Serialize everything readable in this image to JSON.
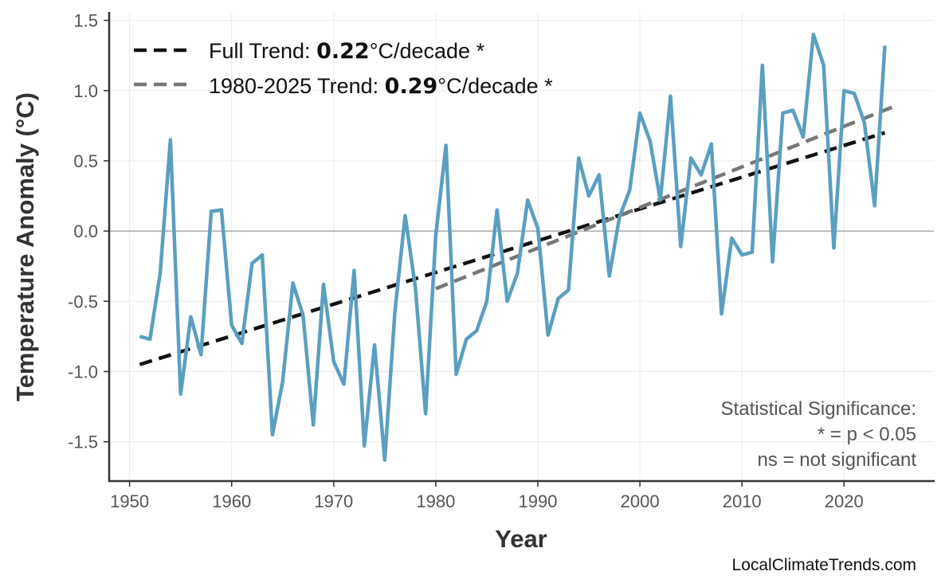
{
  "chart_data": {
    "type": "line",
    "title": "",
    "xlabel": "Year",
    "ylabel": "Temperature Anomaly (°C)",
    "xlim": [
      1948,
      2028.8
    ],
    "ylim": [
      -1.78,
      1.56
    ],
    "xticks": [
      1950,
      1960,
      1970,
      1980,
      1990,
      2000,
      2010,
      2020
    ],
    "yticks": [
      -1.5,
      -1.0,
      -0.5,
      0.0,
      0.5,
      1.0,
      1.5
    ],
    "ytick_labels": [
      "-1.5",
      "-1.0",
      "-0.5",
      "0.0",
      "0.5",
      "1.0",
      "1.5"
    ],
    "grid": true,
    "zero_line": true,
    "legend_position": "top-left",
    "colors": {
      "series": "#5a9fc0",
      "full_trend": "#111111",
      "recent_trend": "#777777",
      "zero_line": "#aaaaaa",
      "grid": "#ebebeb"
    },
    "x": [
      1951,
      1952,
      1953,
      1954,
      1955,
      1956,
      1957,
      1958,
      1959,
      1960,
      1961,
      1962,
      1963,
      1964,
      1965,
      1966,
      1967,
      1968,
      1969,
      1970,
      1971,
      1972,
      1973,
      1974,
      1975,
      1976,
      1977,
      1978,
      1979,
      1980,
      1981,
      1982,
      1983,
      1984,
      1985,
      1986,
      1987,
      1988,
      1989,
      1990,
      1991,
      1992,
      1993,
      1994,
      1995,
      1996,
      1997,
      1998,
      1999,
      2000,
      2001,
      2002,
      2003,
      2004,
      2005,
      2006,
      2007,
      2008,
      2009,
      2010,
      2011,
      2012,
      2013,
      2014,
      2015,
      2016,
      2017,
      2018,
      2019,
      2020,
      2021,
      2022,
      2023,
      2024
    ],
    "values": [
      -0.75,
      -0.77,
      -0.3,
      0.65,
      -1.16,
      -0.61,
      -0.88,
      0.14,
      0.15,
      -0.67,
      -0.8,
      -0.23,
      -0.17,
      -1.45,
      -1.07,
      -0.37,
      -0.6,
      -1.38,
      -0.38,
      -0.93,
      -1.09,
      -0.28,
      -1.53,
      -0.81,
      -1.63,
      -0.57,
      0.11,
      -0.4,
      -1.3,
      -0.03,
      0.61,
      -1.02,
      -0.77,
      -0.71,
      -0.5,
      0.15,
      -0.5,
      -0.3,
      0.22,
      0.02,
      -0.74,
      -0.48,
      -0.42,
      0.52,
      0.25,
      0.4,
      -0.32,
      0.1,
      0.29,
      0.84,
      0.64,
      0.22,
      0.96,
      -0.11,
      0.52,
      0.4,
      0.62,
      -0.59,
      -0.05,
      -0.17,
      -0.15,
      1.18,
      -0.22,
      0.84,
      0.86,
      0.67,
      1.4,
      1.18,
      -0.12,
      1.0,
      0.98,
      0.77,
      0.18,
      1.32
    ],
    "trends": [
      {
        "name": "Full Trend",
        "prefix": "Full Trend: ",
        "rate": "0.22",
        "suffix": "°C/decade *",
        "x": [
          1951,
          2024
        ],
        "y": [
          -0.95,
          0.7
        ]
      },
      {
        "name": "1980-2025 Trend",
        "prefix": "1980-2025 Trend: ",
        "rate": "0.29",
        "suffix": "°C/decade *",
        "x": [
          1980,
          2025
        ],
        "y": [
          -0.41,
          0.89
        ]
      }
    ],
    "annotation": [
      "Statistical Significance:",
      "* = p < 0.05",
      "ns = not significant"
    ]
  },
  "credit": "LocalClimateTrends.com"
}
